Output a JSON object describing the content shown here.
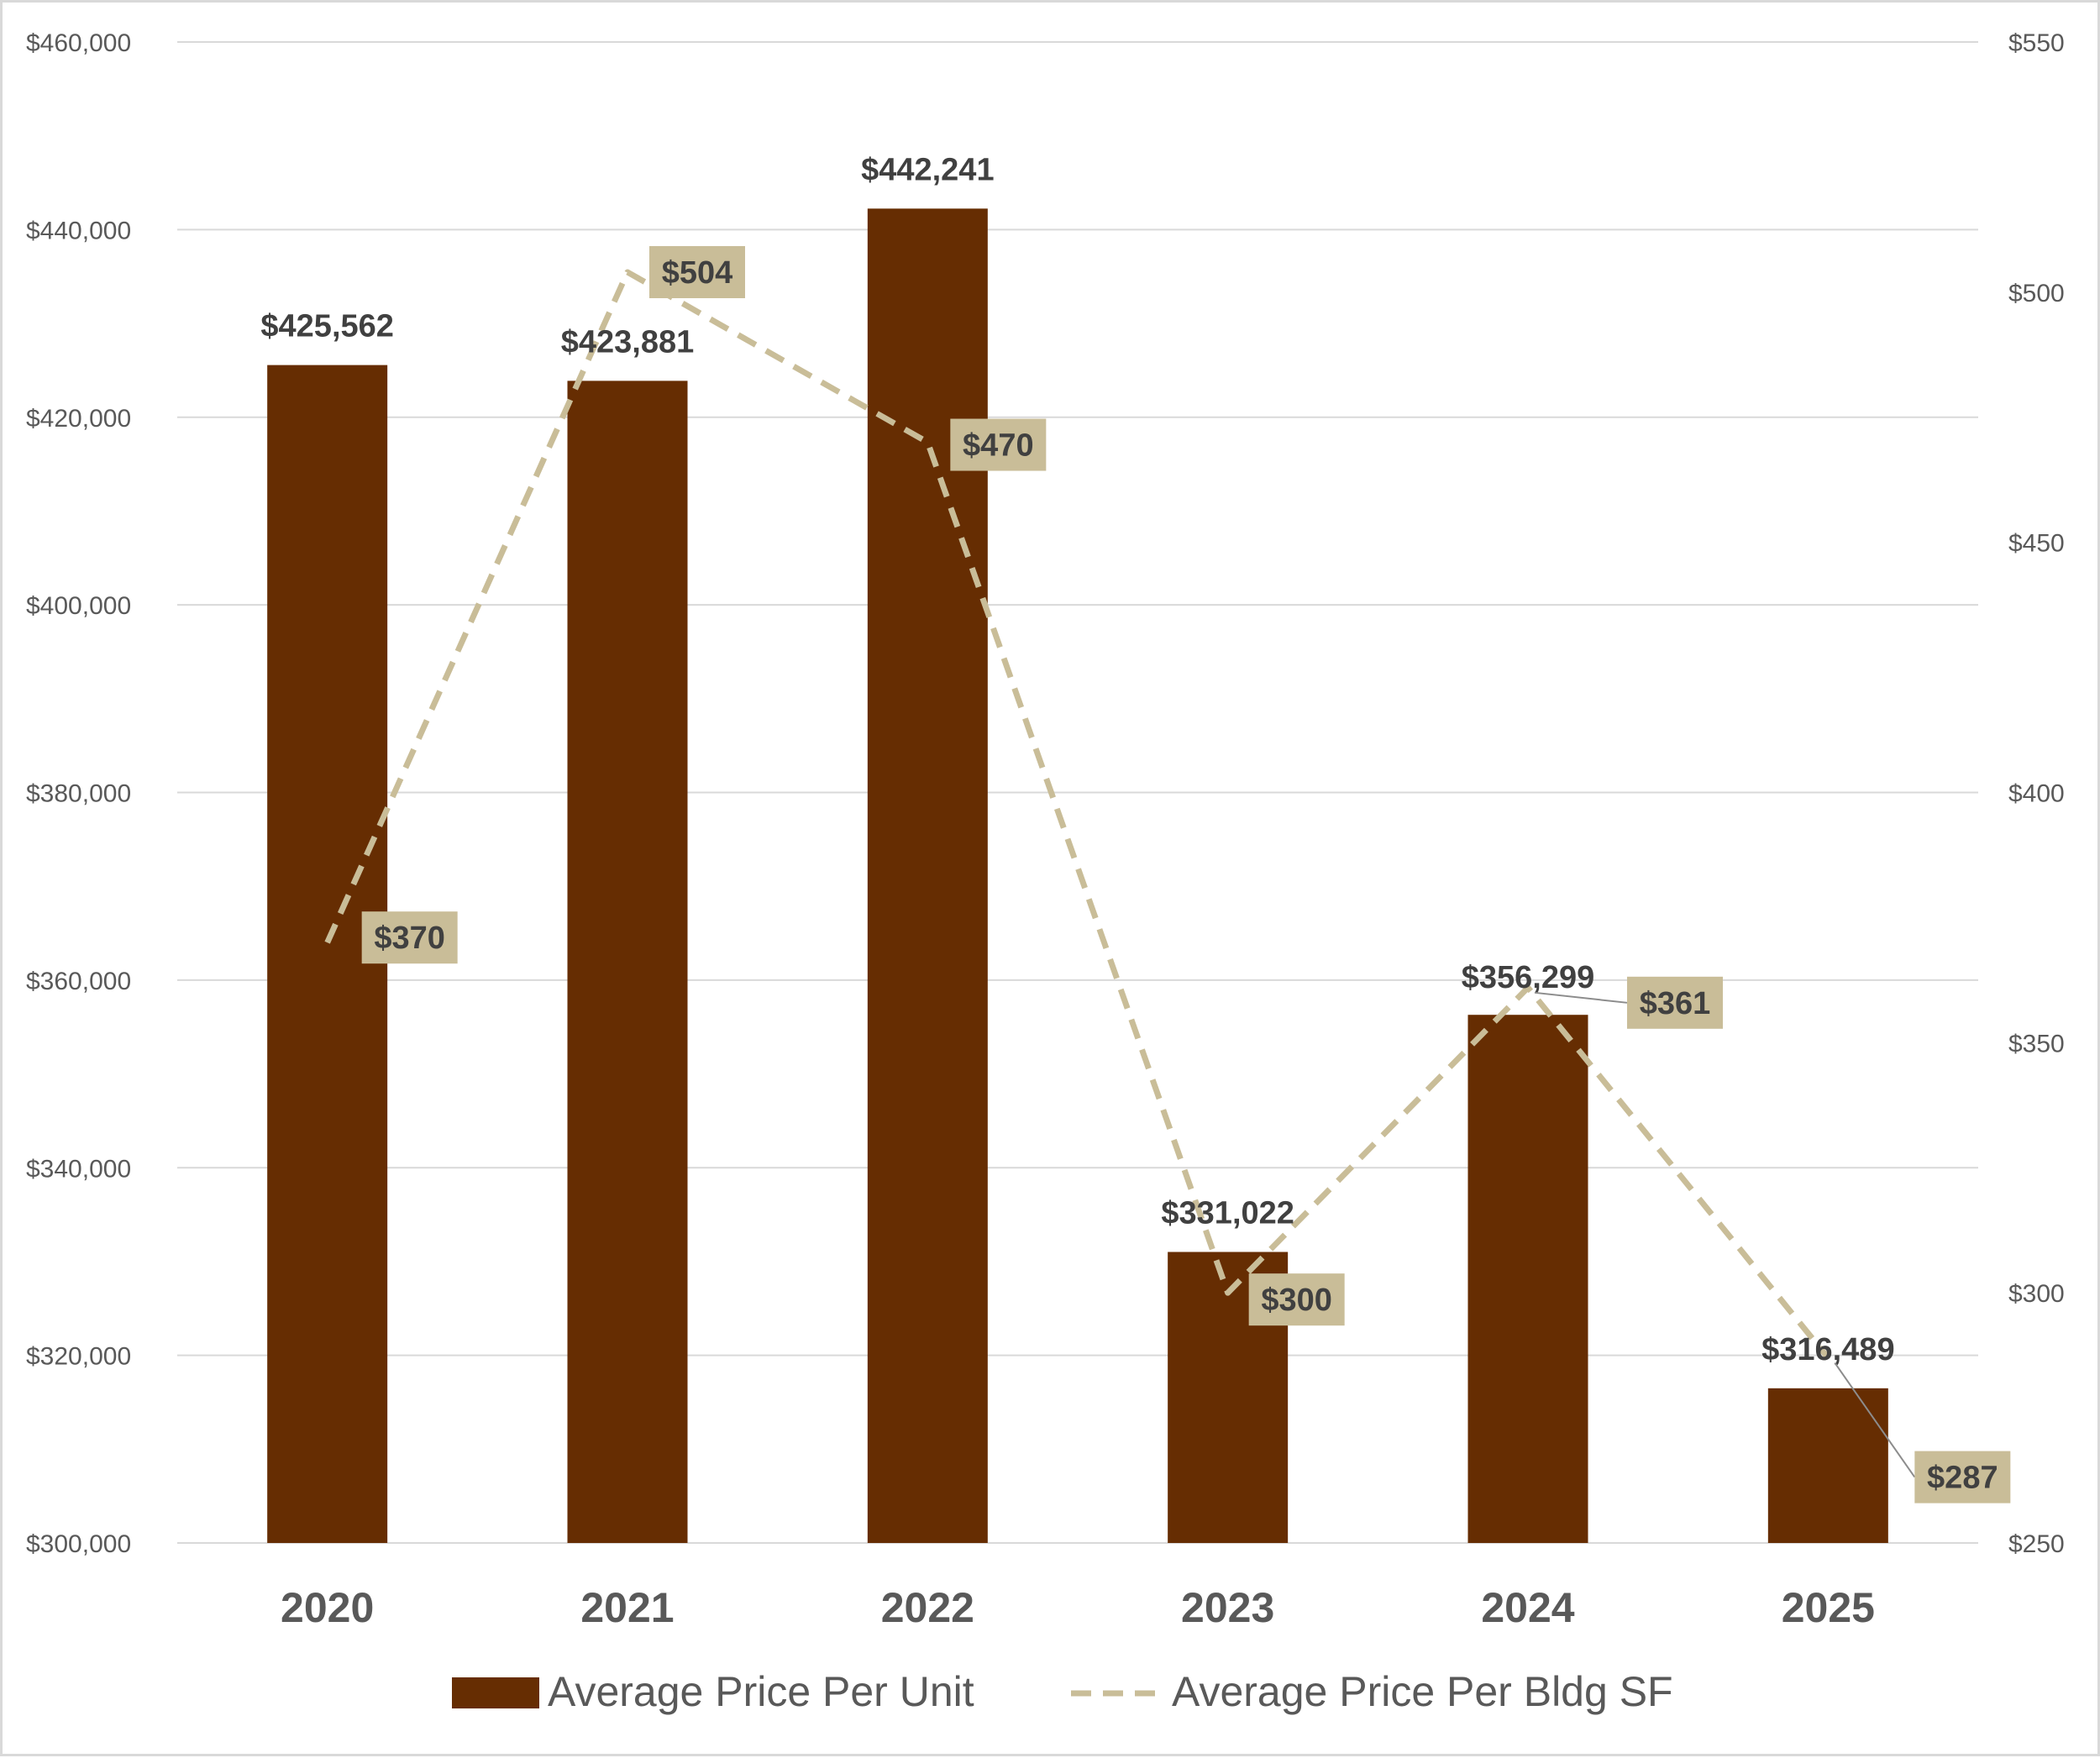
{
  "chart_data": {
    "type": "bar",
    "categories": [
      "2020",
      "2021",
      "2022",
      "2023",
      "2024",
      "2025"
    ],
    "series": [
      {
        "name": "Average Price Per Unit",
        "type": "bar",
        "axis": "left",
        "values": [
          425562,
          423881,
          442241,
          331022,
          356299,
          316489
        ],
        "labels": [
          "$425,562",
          "$423,881",
          "$442,241",
          "$331,022",
          "$356,299",
          "$316,489"
        ],
        "color": "#662d02"
      },
      {
        "name": "Average Price Per Bldg SF",
        "type": "line",
        "style": "dashed",
        "axis": "right",
        "values": [
          370,
          504,
          470,
          300,
          361,
          287
        ],
        "labels": [
          "$370",
          "$504",
          "$470",
          "$300",
          "$361",
          "$287"
        ],
        "color": "#c9bd98",
        "label_bg": "#c9bd98"
      }
    ],
    "y_left": {
      "ylim": [
        300000,
        460000
      ],
      "ticks": [
        300000,
        320000,
        340000,
        360000,
        380000,
        400000,
        420000,
        440000,
        460000
      ],
      "tick_labels": [
        "$300,000",
        "$320,000",
        "$340,000",
        "$360,000",
        "$380,000",
        "$400,000",
        "$420,000",
        "$440,000",
        "$460,000"
      ]
    },
    "y_right": {
      "ylim": [
        250,
        550
      ],
      "ticks": [
        250,
        300,
        350,
        400,
        450,
        500,
        550
      ],
      "tick_labels": [
        "$250",
        "$300",
        "$350",
        "$400",
        "$450",
        "$500",
        "$550"
      ]
    },
    "grid": true,
    "legend_position": "bottom-center"
  }
}
